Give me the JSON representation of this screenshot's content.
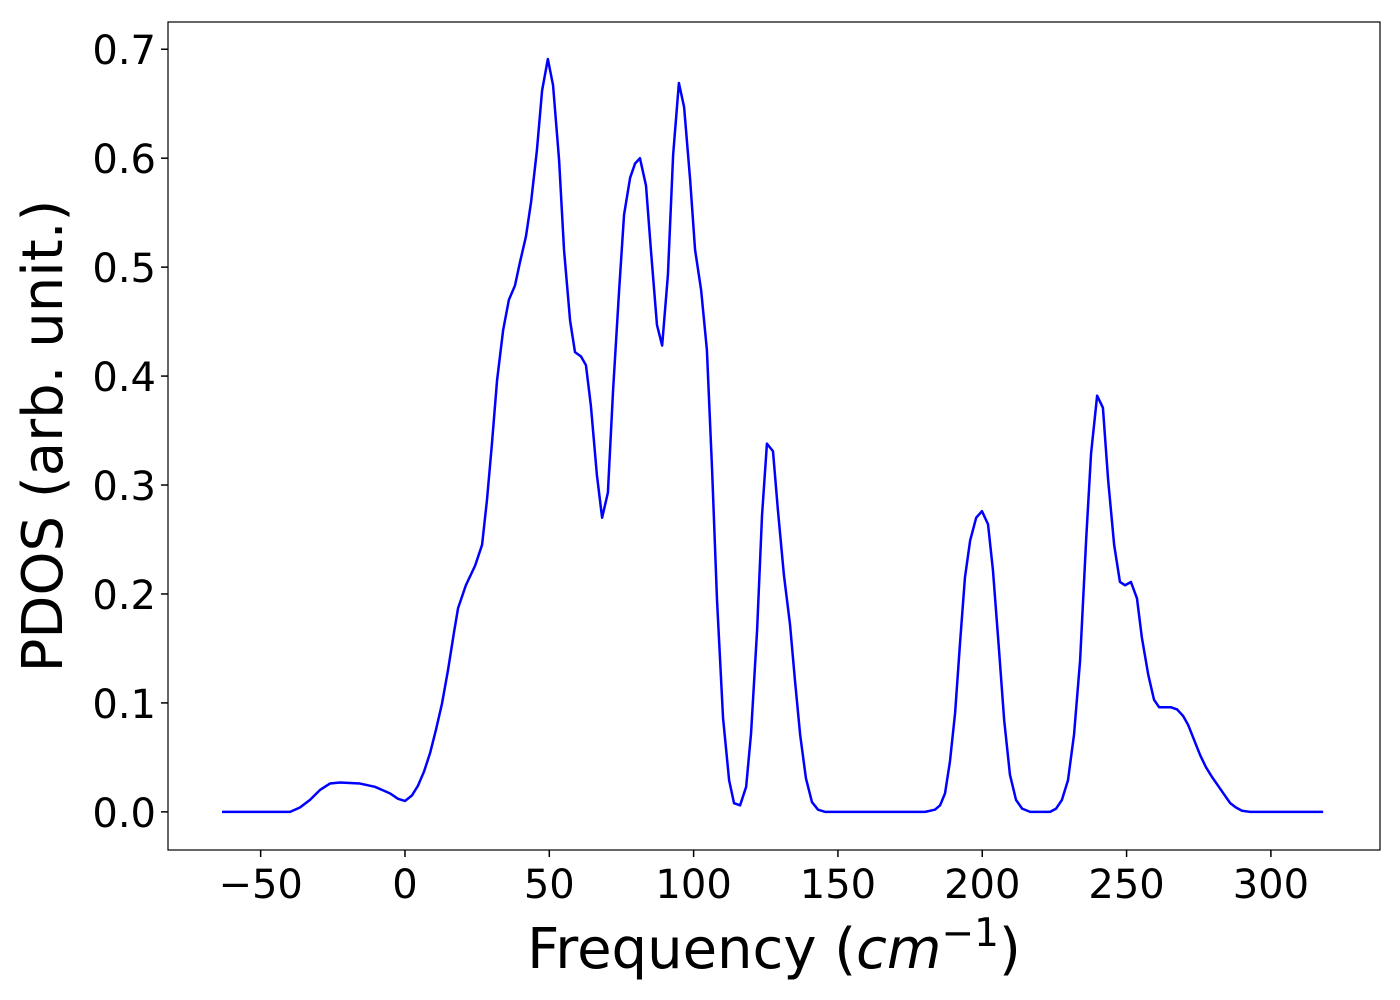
{
  "chart_data": {
    "type": "line",
    "xlabel": {
      "text": "Frequency (",
      "math": "cm",
      "superscript": "−1",
      "close": ")"
    },
    "ylabel": "PDOS (arb. unit.)",
    "x": [
      -63.4,
      -39.8,
      -36.4,
      -32.9,
      -29.5,
      -26.0,
      -22.5,
      -15.6,
      -10.4,
      -5.2,
      -2.4,
      0,
      2.4,
      4.5,
      6.6,
      8.7,
      10.7,
      12.8,
      14.9,
      17.0,
      18.4,
      21.1,
      24.3,
      26.7,
      28.4,
      30.1,
      31.9,
      34.0,
      36.0,
      38.1,
      39.8,
      41.9,
      43.7,
      45.7,
      47.5,
      49.5,
      51.3,
      53.4,
      55.1,
      57.2,
      58.9,
      61.0,
      62.7,
      64.4,
      66.5,
      68.3,
      70.3,
      72.1,
      74.2,
      75.9,
      78.0,
      79.7,
      81.4,
      83.5,
      85.2,
      87.3,
      89.1,
      91.1,
      92.9,
      94.9,
      96.7,
      98.8,
      100.5,
      102.6,
      104.6,
      106.4,
      108.1,
      110.2,
      112.3,
      114.0,
      116.1,
      118.2,
      119.9,
      122.0,
      123.7,
      125.4,
      127.5,
      129.2,
      131.3,
      133.4,
      135.1,
      136.9,
      138.9,
      141.0,
      143.1,
      145.5,
      180.2,
      183.6,
      185.4,
      187.1,
      188.8,
      190.6,
      192.3,
      194.0,
      195.8,
      197.9,
      199.9,
      202.0,
      203.7,
      205.8,
      207.6,
      209.6,
      211.7,
      213.8,
      216.6,
      223.5,
      225.6,
      227.6,
      229.7,
      231.8,
      233.9,
      236.0,
      237.7,
      239.8,
      241.8,
      243.6,
      245.7,
      247.7,
      249.5,
      251.5,
      253.6,
      255.3,
      257.5,
      259.5,
      261.3,
      263.3,
      265.4,
      267.5,
      269.6,
      271.3,
      273.4,
      275.5,
      277.5,
      279.6,
      281.7,
      283.8,
      285.9,
      287.9,
      290.0,
      292.8,
      318.1
    ],
    "series": [
      {
        "color": "#0000ff",
        "values": [
          0,
          0,
          0.004,
          0.011,
          0.02,
          0.026,
          0.027,
          0.026,
          0.023,
          0.017,
          0.012,
          0.01,
          0.015,
          0.024,
          0.037,
          0.054,
          0.075,
          0.099,
          0.13,
          0.165,
          0.187,
          0.208,
          0.226,
          0.245,
          0.286,
          0.337,
          0.396,
          0.442,
          0.47,
          0.483,
          0.504,
          0.528,
          0.56,
          0.607,
          0.662,
          0.691,
          0.667,
          0.598,
          0.516,
          0.451,
          0.422,
          0.418,
          0.41,
          0.373,
          0.309,
          0.27,
          0.293,
          0.387,
          0.479,
          0.548,
          0.582,
          0.595,
          0.6,
          0.575,
          0.516,
          0.447,
          0.428,
          0.493,
          0.603,
          0.669,
          0.647,
          0.58,
          0.516,
          0.479,
          0.424,
          0.314,
          0.195,
          0.086,
          0.029,
          0.008,
          0.006,
          0.023,
          0.072,
          0.167,
          0.272,
          0.338,
          0.331,
          0.277,
          0.217,
          0.172,
          0.121,
          0.071,
          0.031,
          0.009,
          0.002,
          0,
          0,
          0.002,
          0.006,
          0.017,
          0.046,
          0.091,
          0.155,
          0.215,
          0.249,
          0.27,
          0.276,
          0.264,
          0.222,
          0.149,
          0.084,
          0.034,
          0.011,
          0.003,
          0,
          0,
          0.003,
          0.011,
          0.029,
          0.071,
          0.139,
          0.25,
          0.329,
          0.382,
          0.371,
          0.305,
          0.245,
          0.211,
          0.208,
          0.211,
          0.196,
          0.16,
          0.126,
          0.103,
          0.096,
          0.096,
          0.096,
          0.094,
          0.088,
          0.08,
          0.066,
          0.052,
          0.041,
          0.032,
          0.024,
          0.016,
          0.008,
          0.004,
          0.001,
          0,
          0
        ]
      }
    ],
    "xlim": [
      -82.1,
      337.8
    ],
    "ylim": [
      -0.035,
      0.725
    ],
    "xticks": [
      {
        "value": -50,
        "label": "−50"
      },
      0,
      50,
      100,
      150,
      200,
      250,
      300
    ],
    "yticks": [
      {
        "value": 0,
        "label": "0.0"
      },
      0.1,
      0.2,
      0.3,
      0.4,
      0.5,
      0.6,
      0.7
    ],
    "grid": false
  }
}
